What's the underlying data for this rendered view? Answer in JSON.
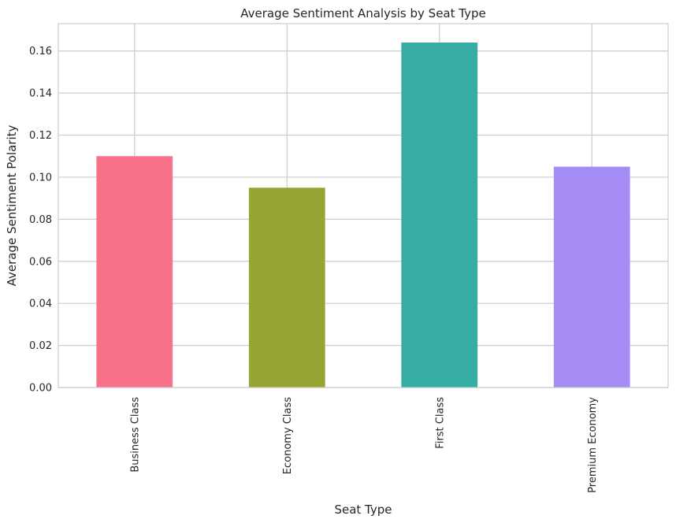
{
  "chart_data": {
    "type": "bar",
    "title": "Average Sentiment Analysis by Seat Type",
    "xlabel": "Seat Type",
    "ylabel": "Average Sentiment Polarity",
    "categories": [
      "Business Class",
      "Economy Class",
      "First Class",
      "Premium Economy"
    ],
    "values": [
      0.11,
      0.095,
      0.164,
      0.105
    ],
    "colors": [
      "#f77189",
      "#97a431",
      "#36ada4",
      "#a48cf4"
    ],
    "ylim": [
      0,
      0.173
    ],
    "yticks": [
      0.0,
      0.02,
      0.04,
      0.06,
      0.08,
      0.1,
      0.12,
      0.14,
      0.16
    ],
    "ytick_labels": [
      "0.00",
      "0.02",
      "0.04",
      "0.06",
      "0.08",
      "0.10",
      "0.12",
      "0.14",
      "0.16"
    ],
    "grid": true,
    "legend": "none"
  }
}
